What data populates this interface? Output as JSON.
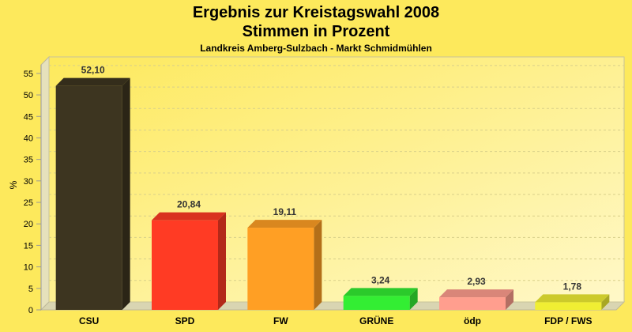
{
  "chart_data": {
    "type": "bar",
    "title": "Ergebnis zur Kreistagswahl 2008",
    "title_line2": "Stimmen in Prozent",
    "subtitle": "Landkreis Amberg-Sulzbach - Markt Schmidmühlen",
    "ylabel": "%",
    "xlabel": "",
    "ylim": [
      0,
      57
    ],
    "yticks": [
      0,
      5,
      10,
      15,
      20,
      25,
      30,
      35,
      40,
      45,
      50,
      55
    ],
    "grid": true,
    "legend": "none",
    "categories": [
      "CSU",
      "SPD",
      "FW",
      "GRÜNE",
      "ödp",
      "FDP / FWS"
    ],
    "values": [
      52.1,
      20.84,
      19.11,
      3.24,
      2.93,
      1.78
    ],
    "value_labels": [
      "52,10",
      "20,84",
      "19,11",
      "3,24",
      "2,93",
      "1,78"
    ],
    "colors": [
      "#3d3520",
      "#ff3b24",
      "#ff9f24",
      "#33ee33",
      "#ff9e8e",
      "#f0ee33"
    ]
  }
}
